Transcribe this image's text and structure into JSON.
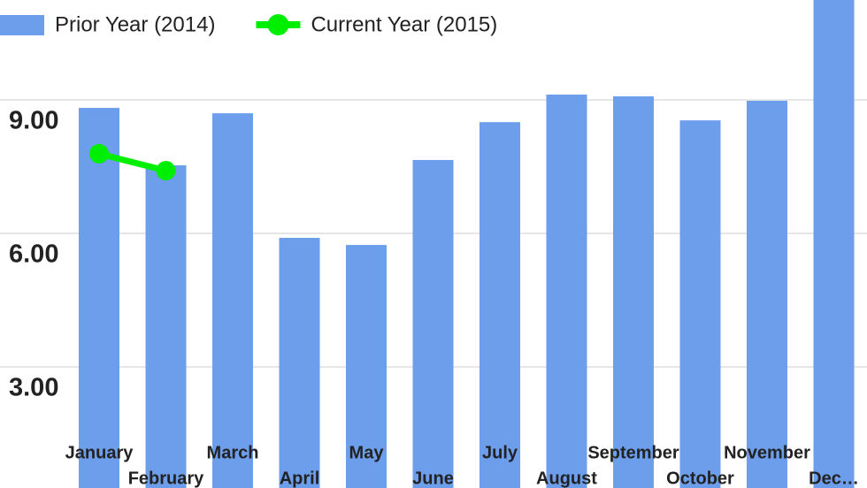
{
  "chart_data": {
    "type": "bar",
    "categories": [
      "January",
      "February",
      "March",
      "April",
      "May",
      "June",
      "July",
      "August",
      "September",
      "October",
      "November",
      "Dec…"
    ],
    "series": [
      {
        "name": "Prior Year (2014)",
        "color": "#6d9eeb",
        "type": "bar",
        "values": [
          8.82,
          7.53,
          8.7,
          5.9,
          5.74,
          7.65,
          8.5,
          9.12,
          9.08,
          8.54,
          8.98,
          11.5
        ]
      },
      {
        "name": "Current Year (2015)",
        "color": "#00ee00",
        "type": "line",
        "values": [
          7.79,
          7.41,
          null,
          null,
          null,
          null,
          null,
          null,
          null,
          null,
          null,
          null
        ]
      }
    ],
    "ylim": [
      0,
      12
    ],
    "yticks": [
      {
        "value": 3,
        "label": "3.00"
      },
      {
        "value": 6,
        "label": "6.00"
      },
      {
        "value": 9,
        "label": "9.00"
      }
    ],
    "grid": true,
    "legend": "top-left"
  }
}
